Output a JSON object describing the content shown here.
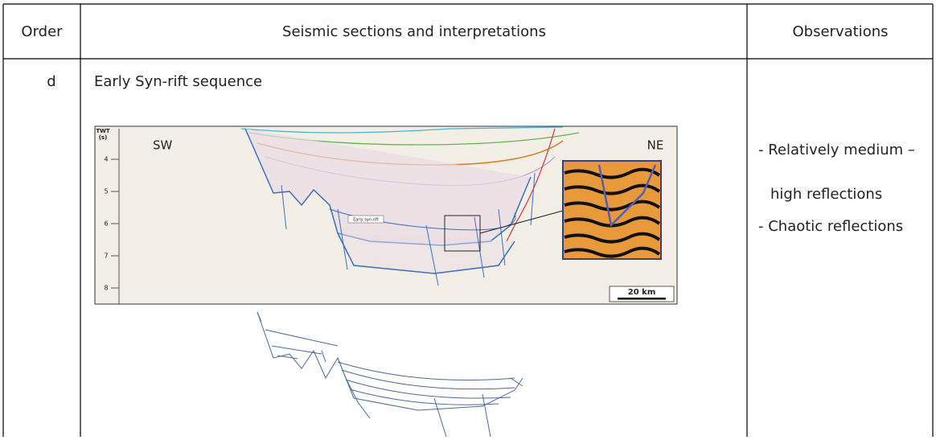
{
  "table": {
    "header": [
      "Order",
      "Seismic sections and interpretations",
      "Observations"
    ],
    "rows": [
      {
        "order": "d",
        "title": "Early Syn-rift sequence",
        "figure": {
          "axis_label": [
            "TWT",
            "(s)"
          ],
          "ticks": [
            4,
            5,
            6,
            7,
            8
          ],
          "left": "SW",
          "right": "NE",
          "unit_label": "Early syn-rift",
          "scale": "20 km"
        },
        "observations": [
          "- Relatively medium –",
          "high reflections",
          "- Chaotic reflections"
        ]
      }
    ]
  }
}
